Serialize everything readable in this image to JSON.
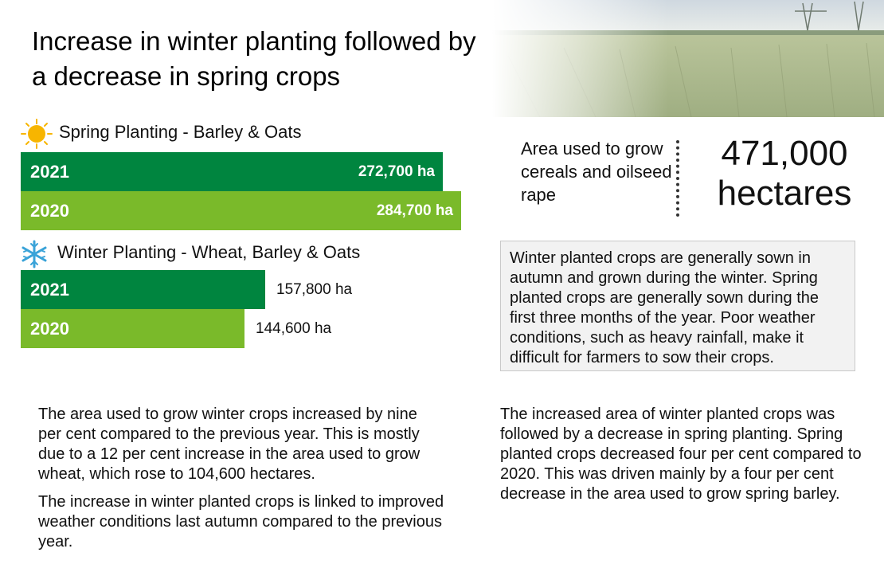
{
  "title": "Increase in winter planting followed by a decrease in spring crops",
  "colors": {
    "dark_green": "#00853f",
    "light_green": "#7aba2a",
    "sun": "#f7b500",
    "snow": "#3aa3d8"
  },
  "icons": {
    "spring": "sun-icon",
    "winter": "snowflake-icon"
  },
  "chart_data": [
    {
      "type": "bar",
      "orientation": "horizontal",
      "title": "Spring Planting - Barley & Oats",
      "categories": [
        "2021",
        "2020"
      ],
      "values": [
        272700,
        284700
      ],
      "labels": [
        "272,700 ha",
        "284,700 ha"
      ],
      "unit": "ha",
      "xlim": [
        0,
        284700
      ],
      "grid": false
    },
    {
      "type": "bar",
      "orientation": "horizontal",
      "title": "Winter Planting - Wheat, Barley & Oats",
      "categories": [
        "2021",
        "2020"
      ],
      "values": [
        157800,
        144600
      ],
      "labels": [
        "157,800 ha",
        "144,600 ha"
      ],
      "unit": "ha",
      "xlim": [
        0,
        284700
      ],
      "grid": false
    }
  ],
  "stat": {
    "label": "Area used to grow cereals and oilseed rape",
    "value": "471,000 hectares"
  },
  "info_box": "Winter planted crops are generally sown in autumn and grown during the winter. Spring planted crops are generally sown during the first three months of the year. Poor weather conditions, such as heavy rainfall, make it difficult for farmers to sow their crops.",
  "paragraphs": {
    "left_1": "The area used to grow winter crops increased by nine per cent compared to the previous year. This is mostly due to a 12 per cent increase in the area used to grow wheat, which rose to 104,600 hectares.",
    "left_2": "The increase in winter planted crops is linked to improved weather conditions last autumn compared to the previous year.",
    "right": "The increased area of winter planted crops was followed by a decrease in spring planting. Spring planted crops decreased four per cent compared to 2020. This was driven mainly by a four per cent decrease in the area used to grow spring barley."
  }
}
